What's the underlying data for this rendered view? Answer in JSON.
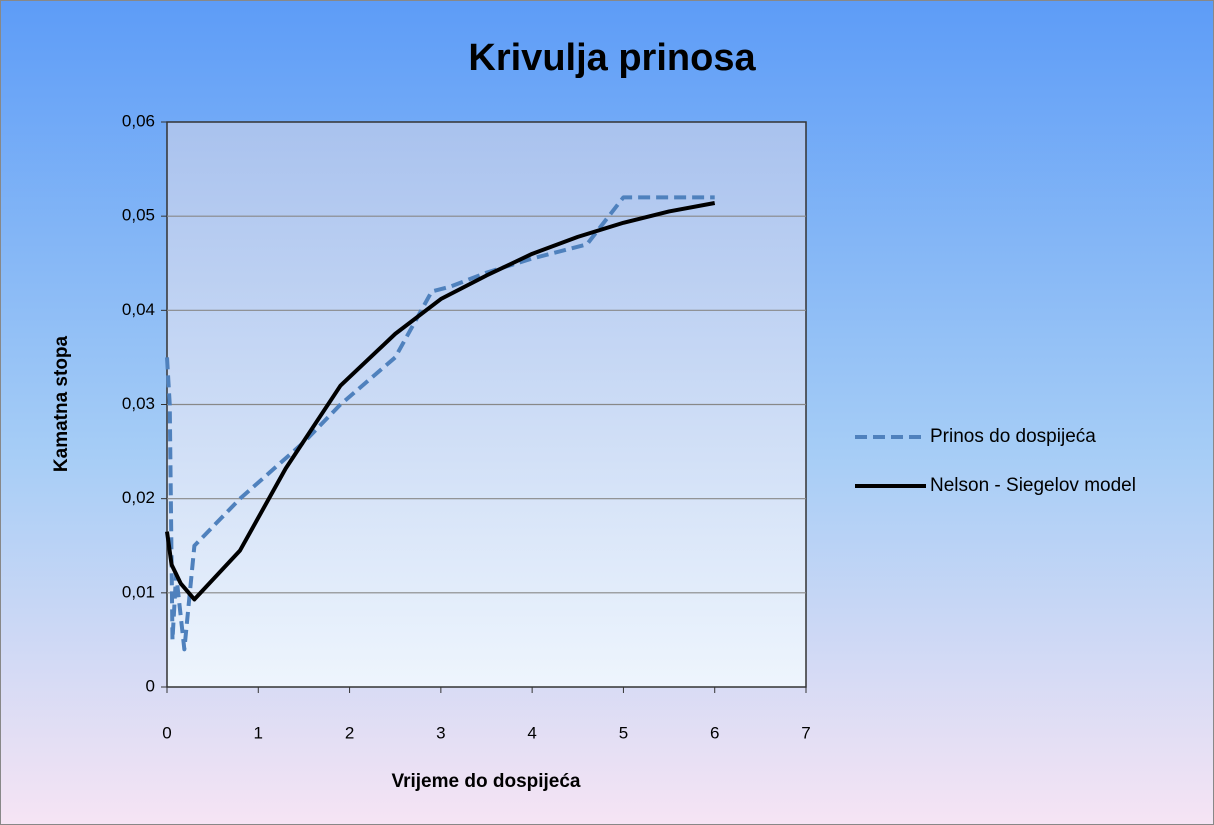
{
  "chart_data": {
    "type": "scatter",
    "title": "Krivulja prinosa",
    "xlabel": "Vrijeme do dospijeća",
    "ylabel": "Kamatna stopa",
    "xlim": [
      0,
      7
    ],
    "xticks": [
      0,
      1,
      2,
      3,
      4,
      5,
      6,
      7
    ],
    "ylim": [
      0,
      0.06
    ],
    "yticks": [
      0,
      {
        "value": 0.01,
        "label": "0,01"
      },
      {
        "value": 0.02,
        "label": "0,02"
      },
      {
        "value": 0.03,
        "label": "0,03"
      },
      {
        "value": 0.04,
        "label": "0,04"
      },
      {
        "value": 0.05,
        "label": "0,05"
      },
      {
        "value": 0.06,
        "label": "0,06"
      }
    ],
    "grid": true,
    "legend": "right",
    "series": [
      {
        "name": "Prinos do dospijeća",
        "color": "#4f81bd",
        "dashed": true,
        "x": [
          0,
          0.03,
          0.06,
          0.1,
          0.19,
          0.3,
          0.8,
          1.5,
          1.9,
          2.5,
          2.9,
          3.1,
          3.5,
          4,
          4.6,
          5,
          5.5,
          6
        ],
        "values": [
          0.035,
          0.03,
          0.005,
          0.012,
          0.004,
          0.015,
          0.02,
          0.026,
          0.03,
          0.035,
          0.042,
          0.0425,
          0.044,
          0.0455,
          0.047,
          0.052,
          0.052,
          0.052
        ]
      },
      {
        "name": "Nelson - Siegelov model",
        "color": "#000000",
        "dashed": false,
        "x": [
          0,
          0.05,
          0.15,
          0.3,
          0.8,
          1.3,
          1.9,
          2.5,
          3,
          3.5,
          4,
          4.5,
          5,
          5.5,
          6
        ],
        "values": [
          0.0165,
          0.013,
          0.011,
          0.0093,
          0.0145,
          0.0232,
          0.032,
          0.0375,
          0.0412,
          0.0437,
          0.046,
          0.0478,
          0.0493,
          0.0505,
          0.0514
        ]
      }
    ]
  }
}
